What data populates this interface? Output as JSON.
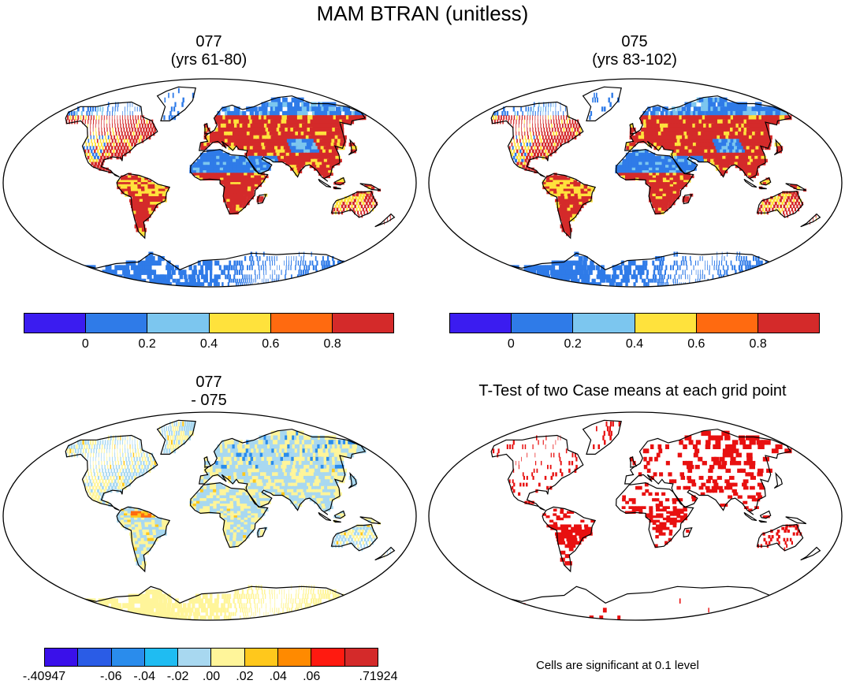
{
  "title": "MAM BTRAN (unitless)",
  "panels": {
    "top_left": {
      "line1": "077",
      "line2": "(yrs 61-80)"
    },
    "top_right": {
      "line1": "075",
      "line2": "(yrs 83-102)"
    },
    "bottom_left": {
      "line1": "077",
      "line2": "- 075"
    },
    "bottom_right": {
      "title": "T-Test of two Case means at each grid point",
      "note": "Cells are significant at 0.1 level"
    }
  },
  "colorbar_main": {
    "colors": [
      "#3b1cf0",
      "#2f7be8",
      "#7cc6ef",
      "#ffe23c",
      "#ff6a10",
      "#d42a2a"
    ],
    "ticks": [
      "0",
      "0.2",
      "0.4",
      "0.6",
      "0.8"
    ]
  },
  "colorbar_diff": {
    "colors": [
      "#3a10ea",
      "#2a5ce6",
      "#2a8cec",
      "#1fbcf2",
      "#a8d8f0",
      "#fff59a",
      "#ffc81c",
      "#ff8a00",
      "#ff1a10",
      "#d42a2a"
    ],
    "ticks": [
      "-.40947",
      "-.06",
      "-.04",
      "-.02",
      ".00",
      ".02",
      ".04",
      ".06",
      ".71924"
    ]
  },
  "map_colors": {
    "ocean": "#ffffff",
    "btran_dry": "#2f7be8",
    "btran_mid": "#7cc6ef",
    "btran_moist": "#ffe23c",
    "btran_wet": "#d42a2a",
    "diff_neutral": "#a8d8f0",
    "diff_pos": "#fff59a",
    "signif": "#e81010"
  }
}
